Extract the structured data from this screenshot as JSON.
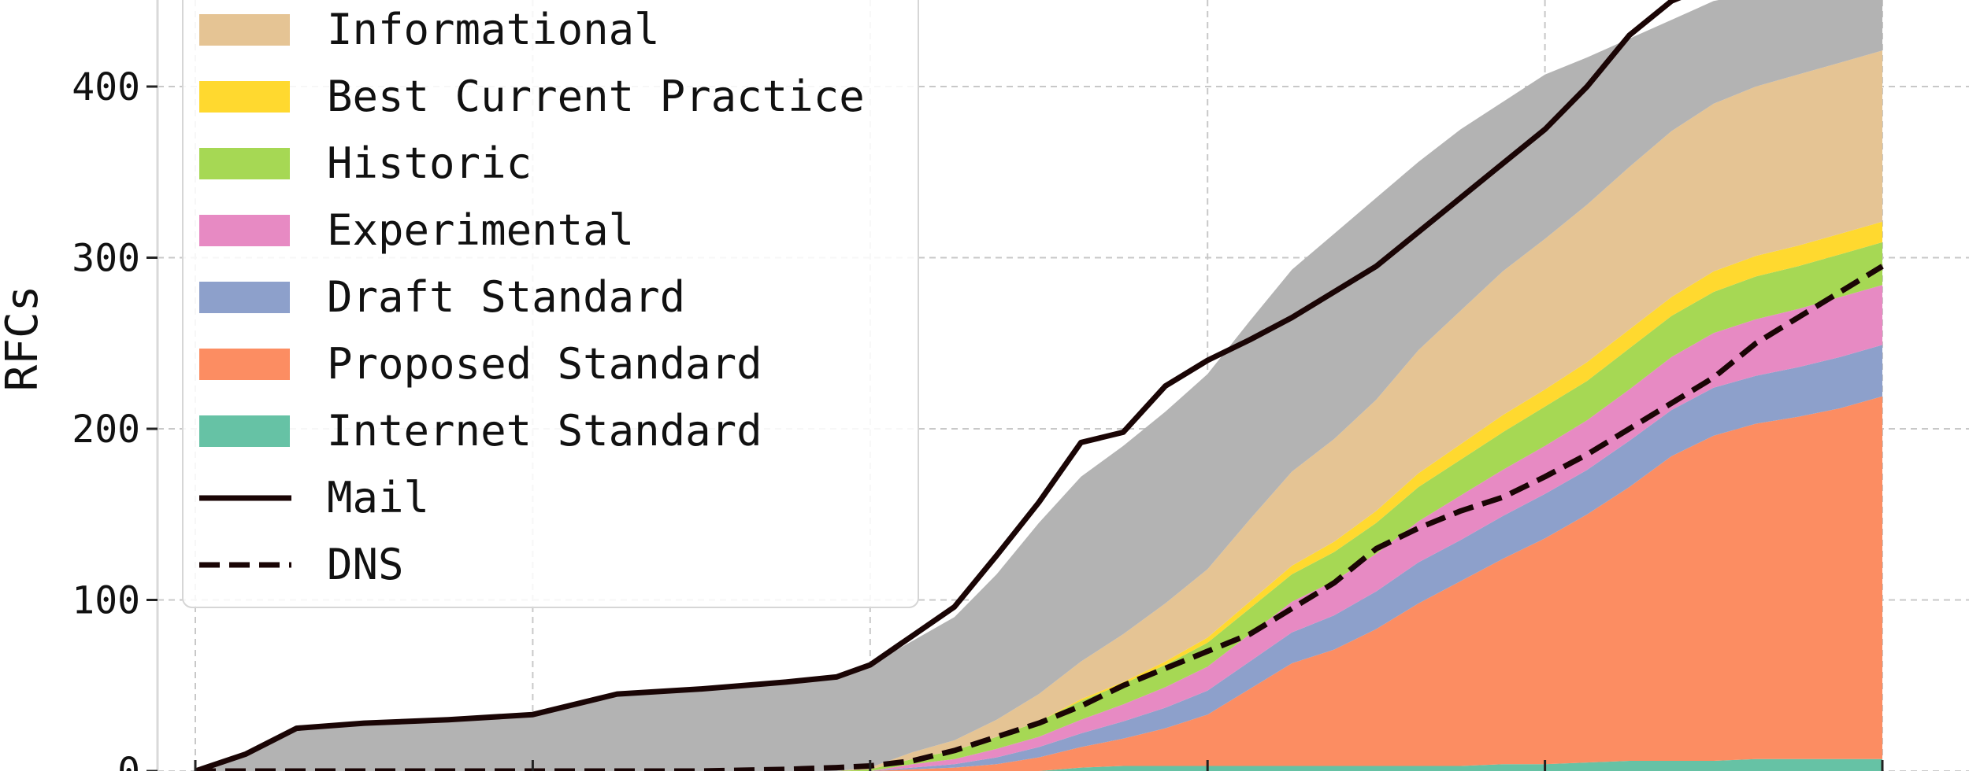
{
  "chart_data": {
    "type": "area",
    "title": "",
    "xlabel": "",
    "ylabel": "RFCs",
    "ylim": [
      0,
      445
    ],
    "xlim": [
      0,
      2000
    ],
    "yticks": [
      {
        "value": 0,
        "label": "0"
      },
      {
        "value": 100,
        "label": "100"
      },
      {
        "value": 200,
        "label": "200"
      },
      {
        "value": 300,
        "label": "300"
      },
      {
        "value": 400,
        "label": "400"
      }
    ],
    "x_grid": [
      0,
      400,
      800,
      1200,
      1600,
      2000
    ],
    "grid": true,
    "legend": {
      "placement": "upper-left",
      "entries": [
        {
          "label": "Informational",
          "kind": "area",
          "color": "#e5c494"
        },
        {
          "label": "Best Current Practice",
          "kind": "area",
          "color": "#ffd92f"
        },
        {
          "label": "Historic",
          "kind": "area",
          "color": "#a6d854"
        },
        {
          "label": "Experimental",
          "kind": "area",
          "color": "#e78ac3"
        },
        {
          "label": "Draft Standard",
          "kind": "area",
          "color": "#8da0cb"
        },
        {
          "label": "Proposed Standard",
          "kind": "area",
          "color": "#fc8d62"
        },
        {
          "label": "Internet Standard",
          "kind": "area",
          "color": "#66c2a5"
        },
        {
          "label": "Mail",
          "kind": "line",
          "style": "solid",
          "color": "#1a0505"
        },
        {
          "label": "DNS",
          "kind": "line",
          "style": "dashed",
          "color": "#1a0505"
        }
      ]
    },
    "x": [
      0,
      60,
      120,
      200,
      300,
      400,
      500,
      600,
      700,
      760,
      800,
      850,
      900,
      950,
      1000,
      1050,
      1100,
      1150,
      1200,
      1250,
      1300,
      1350,
      1400,
      1450,
      1500,
      1550,
      1600,
      1650,
      1700,
      1750,
      1800,
      1850,
      1900,
      1950,
      2000
    ],
    "stacked_series": [
      {
        "name": "Internet Standard",
        "color": "#66c2a5",
        "values": [
          0,
          0,
          0,
          0,
          0,
          0,
          0,
          0,
          0,
          0,
          0,
          0,
          0,
          0,
          0,
          2,
          3,
          3,
          3,
          3,
          3,
          3,
          3,
          3,
          3,
          4,
          4,
          5,
          6,
          6,
          6,
          7,
          7,
          7,
          7
        ]
      },
      {
        "name": "Proposed Standard",
        "color": "#fc8d62",
        "values": [
          0,
          0,
          0,
          0,
          0,
          0,
          0,
          0,
          0,
          0,
          0,
          1,
          2,
          4,
          8,
          12,
          16,
          22,
          30,
          45,
          60,
          68,
          80,
          95,
          108,
          120,
          132,
          145,
          160,
          178,
          190,
          196,
          200,
          205,
          212
        ]
      },
      {
        "name": "Draft Standard",
        "color": "#8da0cb",
        "values": [
          0,
          0,
          0,
          0,
          0,
          0,
          0,
          0,
          0,
          0,
          0,
          1,
          2,
          4,
          6,
          8,
          10,
          12,
          14,
          16,
          18,
          20,
          22,
          24,
          24,
          25,
          26,
          26,
          27,
          27,
          28,
          28,
          29,
          30,
          30
        ]
      },
      {
        "name": "Experimental",
        "color": "#e78ac3",
        "values": [
          0,
          0,
          0,
          0,
          0,
          0,
          0,
          0,
          0,
          0,
          0,
          2,
          3,
          5,
          6,
          8,
          10,
          12,
          14,
          16,
          18,
          20,
          22,
          24,
          26,
          27,
          28,
          29,
          30,
          31,
          32,
          33,
          34,
          35,
          35
        ]
      },
      {
        "name": "Historic",
        "color": "#a6d854",
        "values": [
          0,
          0,
          0,
          0,
          0,
          0,
          0,
          0,
          0,
          0,
          1,
          3,
          5,
          7,
          9,
          11,
          12,
          13,
          14,
          15,
          16,
          17,
          18,
          20,
          21,
          22,
          23,
          23,
          24,
          24,
          24,
          25,
          25,
          25,
          25
        ]
      },
      {
        "name": "Best Current Practice",
        "color": "#ffd92f",
        "values": [
          0,
          0,
          0,
          0,
          0,
          0,
          0,
          0,
          0,
          0,
          0,
          0,
          0,
          0,
          0,
          1,
          1,
          2,
          3,
          4,
          5,
          6,
          7,
          8,
          9,
          10,
          10,
          11,
          11,
          11,
          12,
          12,
          12,
          12,
          12
        ]
      },
      {
        "name": "Informational",
        "color": "#e5c494",
        "values": [
          0,
          0,
          0,
          0,
          0,
          0,
          0,
          0,
          0,
          0,
          1,
          4,
          6,
          10,
          16,
          22,
          28,
          34,
          40,
          48,
          55,
          60,
          65,
          72,
          78,
          84,
          88,
          92,
          95,
          97,
          98,
          99,
          100,
          100,
          100
        ]
      },
      {
        "name": "Other",
        "color": "#b3b3b3",
        "values": [
          0,
          10,
          25,
          28,
          30,
          33,
          45,
          48,
          52,
          55,
          60,
          65,
          72,
          85,
          100,
          108,
          110,
          112,
          114,
          116,
          118,
          120,
          118,
          110,
          106,
          99,
          96,
          86,
          75,
          65,
          60,
          55,
          50,
          40,
          35
        ]
      }
    ],
    "lines": [
      {
        "name": "Mail",
        "style": "solid",
        "color": "#1a0505",
        "values": [
          0,
          10,
          25,
          28,
          30,
          33,
          45,
          48,
          52,
          55,
          62,
          79,
          96,
          126,
          157,
          192,
          198,
          225,
          240,
          252,
          265,
          280,
          295,
          315,
          335,
          355,
          375,
          400,
          430,
          450,
          460,
          465,
          468,
          470,
          470
        ]
      },
      {
        "name": "DNS",
        "style": "dashed",
        "color": "#1a0505",
        "values": [
          0,
          0,
          0,
          0,
          0,
          0,
          0,
          0,
          1,
          2,
          3,
          6,
          12,
          20,
          28,
          38,
          50,
          60,
          70,
          80,
          95,
          110,
          130,
          142,
          152,
          160,
          172,
          185,
          200,
          215,
          230,
          250,
          265,
          280,
          295
        ]
      }
    ]
  }
}
